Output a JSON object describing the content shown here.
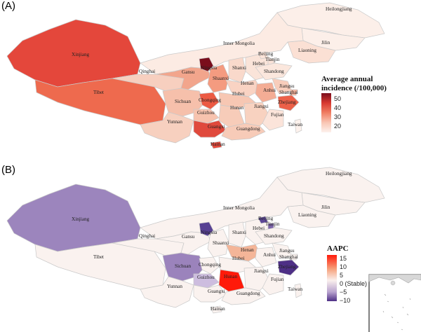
{
  "panelA": {
    "label": "(A)",
    "legend": {
      "title_line1": "Average annual",
      "title_line2": "incidence (/100,000)",
      "ticks": [
        "50",
        "40",
        "30",
        "20"
      ],
      "colors": [
        "#7a0d1c",
        "#d83a31",
        "#f07e63",
        "#f9c6b4",
        "#fdf2ed"
      ]
    }
  },
  "panelB": {
    "label": "(B)",
    "legend": {
      "title": "AAPC",
      "ticks": [
        "15",
        "10",
        "5",
        "0 (Stable)",
        "−5",
        "−10"
      ],
      "colors": [
        "#ff1a0a",
        "#f6a07a",
        "#faf0ee",
        "#b9a4cf",
        "#4e2f86"
      ]
    }
  },
  "provinces": {
    "xinjiang": "Xinjiang",
    "tibet": "Tibet",
    "qinghai": "Qinghai",
    "gansu": "Gansu",
    "ningxia": "Ningxia",
    "inner_mongolia": "Inner Mongolia",
    "heilongjiang": "Heilongjiang",
    "jilin": "Jilin",
    "liaoning": "Liaoning",
    "beijing": "Beijing",
    "tianjin": "Tianjin",
    "hebei": "Hebei",
    "shanxi": "Shanxi",
    "shaanxi": "Shaanxi",
    "shandong": "Shandong",
    "henan": "Henan",
    "sichuan": "Sichuan",
    "chongqing": "Chongqing",
    "hubei": "Hubei",
    "anhui": "Anhui",
    "jiangsu": "Jiangsu",
    "shanghai": "Shanghai",
    "zhejiang": "Zhejiang",
    "guizhou": "Guizhou",
    "hunan": "Hunan",
    "jiangxi": "Jiangxi",
    "fujian": "Fujian",
    "taiwan": "Taiwan",
    "yunnan": "Yunnan",
    "guangxi": "Guangxi",
    "guangdong": "Guangdong",
    "hainan": "Hainan"
  }
}
